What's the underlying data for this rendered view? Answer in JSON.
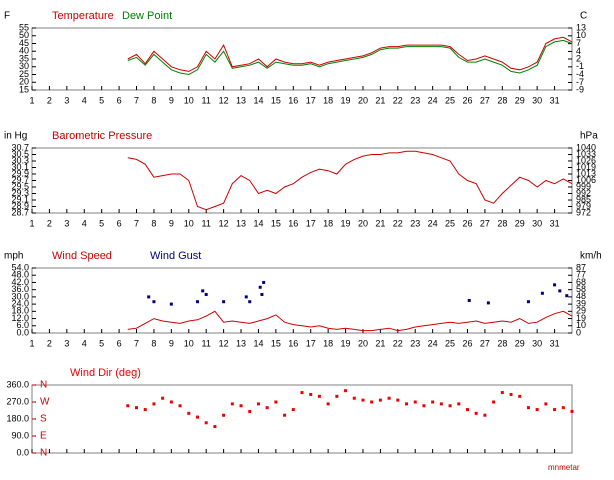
{
  "chart_data": [
    {
      "type": "line",
      "y_label": "F",
      "y2_label": "C",
      "xlim": [
        1,
        32
      ],
      "xticks": [
        1,
        2,
        3,
        4,
        5,
        6,
        7,
        8,
        9,
        10,
        11,
        12,
        13,
        14,
        15,
        16,
        17,
        18,
        19,
        20,
        21,
        22,
        23,
        24,
        25,
        26,
        27,
        28,
        29,
        30,
        31
      ],
      "ylim": [
        15,
        55
      ],
      "yticks": [
        55,
        50,
        45,
        40,
        35,
        30,
        25,
        20,
        15
      ],
      "y2lim": [
        -9.4,
        12.8
      ],
      "y2ticks": [
        {
          "value": 12.8,
          "label": "13"
        },
        {
          "value": 10,
          "label": "10"
        },
        {
          "value": 7.2,
          "label": "7"
        },
        {
          "value": 4.4,
          "label": "4"
        },
        {
          "value": 1.7,
          "label": "2"
        },
        {
          "value": -1.1,
          "label": "-1"
        },
        {
          "value": -3.9,
          "label": "-4"
        },
        {
          "value": -6.7,
          "label": "-7"
        },
        {
          "value": -9.4,
          "label": "-9"
        }
      ],
      "x": [
        6.5,
        7,
        7.5,
        8,
        8.5,
        9,
        9.5,
        10,
        10.5,
        11,
        11.5,
        12,
        12.5,
        13,
        13.5,
        14,
        14.5,
        15,
        15.5,
        16,
        16.5,
        17,
        17.5,
        18,
        18.5,
        19,
        19.5,
        20,
        20.5,
        21,
        21.5,
        22,
        22.5,
        23,
        23.5,
        24,
        24.5,
        25,
        25.5,
        26,
        26.5,
        27,
        27.5,
        28,
        28.5,
        29,
        29.5,
        30,
        30.5,
        31,
        31.5,
        32
      ],
      "series": [
        {
          "name": "Temperature",
          "color": "#cc0000",
          "values": [
            35,
            38,
            32,
            40,
            35,
            30,
            28,
            27,
            30,
            40,
            35,
            44,
            30,
            31,
            32,
            35,
            30,
            35,
            33,
            32,
            32,
            33,
            31,
            33,
            34,
            35,
            36,
            37,
            39,
            42,
            43,
            43,
            44,
            44,
            44,
            44,
            44,
            43,
            38,
            34,
            35,
            37,
            35,
            33,
            29,
            28,
            30,
            33,
            45,
            48,
            49,
            46
          ]
        },
        {
          "name": "Dew Point",
          "color": "#008000",
          "values": [
            34,
            36,
            31,
            38,
            33,
            28,
            26,
            25,
            28,
            38,
            33,
            40,
            29,
            30,
            31,
            33,
            29,
            33,
            32,
            31,
            31,
            32,
            30,
            32,
            33,
            34,
            35,
            36,
            38,
            41,
            42,
            42,
            43,
            43,
            43,
            43,
            43,
            42,
            36,
            33,
            33,
            35,
            33,
            31,
            27,
            26,
            28,
            31,
            43,
            46,
            47,
            45
          ]
        }
      ]
    },
    {
      "type": "line",
      "y_label": "in Hg",
      "y2_label": "hPa",
      "xlim": [
        1,
        32
      ],
      "xticks": [
        1,
        2,
        3,
        4,
        5,
        6,
        7,
        8,
        9,
        10,
        11,
        12,
        13,
        14,
        15,
        16,
        17,
        18,
        19,
        20,
        21,
        22,
        23,
        24,
        25,
        26,
        27,
        28,
        29,
        30,
        31
      ],
      "ylim": [
        28.7,
        30.7
      ],
      "yticks": [
        30.7,
        30.5,
        30.3,
        30.1,
        29.9,
        29.7,
        29.5,
        29.3,
        29.1,
        28.9,
        28.7
      ],
      "y2lim": [
        971.9,
        1039.6
      ],
      "y2ticks": [
        {
          "value": 1039.6,
          "label": "1040"
        },
        {
          "value": 1032.8,
          "label": "1033"
        },
        {
          "value": 1026.1,
          "label": "1026"
        },
        {
          "value": 1019.3,
          "label": "1019"
        },
        {
          "value": 1012.5,
          "label": "1013"
        },
        {
          "value": 1005.7,
          "label": "1006"
        },
        {
          "value": 999.0,
          "label": "999"
        },
        {
          "value": 992.2,
          "label": "992"
        },
        {
          "value": 985.4,
          "label": "985"
        },
        {
          "value": 978.7,
          "label": "979"
        },
        {
          "value": 971.9,
          "label": "972"
        }
      ],
      "x": [
        6.5,
        7,
        7.5,
        8,
        8.5,
        9,
        9.5,
        10,
        10.5,
        11,
        11.5,
        12,
        12.5,
        13,
        13.5,
        14,
        14.5,
        15,
        15.5,
        16,
        16.5,
        17,
        17.5,
        18,
        18.5,
        19,
        19.5,
        20,
        20.5,
        21,
        21.5,
        22,
        22.5,
        23,
        23.5,
        24,
        24.5,
        25,
        25.5,
        26,
        26.5,
        27,
        27.5,
        28,
        28.5,
        29,
        29.5,
        30,
        30.5,
        31,
        31.5,
        32
      ],
      "series": [
        {
          "name": "Barometric Pressure",
          "color": "#cc0000",
          "values": [
            30.4,
            30.35,
            30.2,
            29.8,
            29.85,
            29.9,
            29.9,
            29.7,
            28.9,
            28.8,
            28.9,
            29.0,
            29.6,
            29.85,
            29.7,
            29.3,
            29.4,
            29.3,
            29.5,
            29.6,
            29.8,
            29.95,
            30.05,
            30.0,
            29.9,
            30.2,
            30.35,
            30.45,
            30.5,
            30.5,
            30.55,
            30.55,
            30.6,
            30.6,
            30.55,
            30.5,
            30.4,
            30.3,
            29.9,
            29.7,
            29.6,
            29.1,
            29.0,
            29.3,
            29.55,
            29.8,
            29.7,
            29.5,
            29.7,
            29.6,
            29.75,
            29.6
          ]
        }
      ]
    },
    {
      "type": "line",
      "y_label": "mph",
      "y2_label": "km/h",
      "xlim": [
        1,
        32
      ],
      "xticks": [
        1,
        2,
        3,
        4,
        5,
        6,
        7,
        8,
        9,
        10,
        11,
        12,
        13,
        14,
        15,
        16,
        17,
        18,
        19,
        20,
        21,
        22,
        23,
        24,
        25,
        26,
        27,
        28,
        29,
        30,
        31
      ],
      "ylim": [
        0,
        54
      ],
      "yticks": [
        {
          "value": 54,
          "label": "54.0"
        },
        {
          "value": 48,
          "label": "48.0"
        },
        {
          "value": 42,
          "label": "42.0"
        },
        {
          "value": 36,
          "label": "36.0"
        },
        {
          "value": 30,
          "label": "30.0"
        },
        {
          "value": 24,
          "label": "24.0"
        },
        {
          "value": 18,
          "label": "18.0"
        },
        {
          "value": 12,
          "label": "12.0"
        },
        {
          "value": 6,
          "label": "6.0"
        },
        {
          "value": 0,
          "label": "0.0"
        }
      ],
      "y2lim": [
        0,
        86.9
      ],
      "y2ticks": [
        {
          "value": 86.9,
          "label": "87"
        },
        {
          "value": 77.2,
          "label": "77"
        },
        {
          "value": 67.6,
          "label": "68"
        },
        {
          "value": 57.9,
          "label": "58"
        },
        {
          "value": 48.3,
          "label": "48"
        },
        {
          "value": 38.6,
          "label": "39"
        },
        {
          "value": 29.0,
          "label": "29"
        },
        {
          "value": 19.3,
          "label": "19"
        },
        {
          "value": 9.7,
          "label": "10"
        },
        0
      ],
      "x": [
        6.5,
        7,
        7.5,
        8,
        8.5,
        9,
        9.5,
        10,
        10.5,
        11,
        11.5,
        12,
        12.5,
        13,
        13.5,
        14,
        14.5,
        15,
        15.5,
        16,
        16.5,
        17,
        17.5,
        18,
        18.5,
        19,
        19.5,
        20,
        20.5,
        21,
        21.5,
        22,
        22.5,
        23,
        23.5,
        24,
        24.5,
        25,
        25.5,
        26,
        26.5,
        27,
        27.5,
        28,
        28.5,
        29,
        29.5,
        30,
        30.5,
        31,
        31.5,
        32
      ],
      "series": [
        {
          "name": "Wind Speed",
          "color": "#cc0000",
          "values": [
            3,
            4,
            8,
            12,
            10,
            9,
            8,
            10,
            11,
            14,
            18,
            9,
            10,
            9,
            8,
            10,
            12,
            15,
            9,
            7,
            6,
            5,
            6,
            4,
            3,
            4,
            3,
            2,
            2,
            3,
            4,
            2,
            3,
            5,
            6,
            7,
            8,
            9,
            8,
            9,
            10,
            8,
            9,
            10,
            9,
            12,
            8,
            9,
            13,
            16,
            18,
            14
          ]
        },
        {
          "name": "Wind Gust",
          "color": "#000080",
          "type": "scatter",
          "x": [
            7.7,
            8,
            9,
            10.5,
            10.8,
            11,
            12,
            13.3,
            13.5,
            14.1,
            14.2,
            14.3,
            26.1,
            27.2,
            29.5,
            30.3,
            31,
            31.3,
            31.7
          ],
          "values": [
            30,
            26,
            24,
            26,
            35,
            32,
            26,
            30,
            26,
            38,
            32,
            42,
            27,
            25,
            26,
            33,
            40,
            35,
            31
          ]
        }
      ]
    },
    {
      "type": "scatter",
      "xlim": [
        1,
        32
      ],
      "xticks": [
        1,
        2,
        3,
        4,
        5,
        6,
        7,
        8,
        9,
        10,
        11,
        12,
        13,
        14,
        15,
        16,
        17,
        18,
        19,
        20,
        21,
        22,
        23,
        24,
        25,
        26,
        27,
        28,
        29,
        30,
        31
      ],
      "ylim": [
        0,
        360
      ],
      "yticks": [
        {
          "value": 360,
          "label": "360.0"
        },
        {
          "value": 270,
          "label": "270.0"
        },
        {
          "value": 180,
          "label": "180.0"
        },
        {
          "value": 90,
          "label": "90.0"
        },
        {
          "value": 0,
          "label": "0.0"
        }
      ],
      "compass": [
        {
          "value": 360,
          "label": "N"
        },
        {
          "value": 270,
          "label": "W"
        },
        {
          "value": 180,
          "label": "S"
        },
        {
          "value": 90,
          "label": "E"
        },
        {
          "value": 0,
          "label": "N"
        }
      ],
      "x": [
        6.5,
        7,
        7.5,
        8,
        8.5,
        9,
        9.5,
        10,
        10.5,
        11,
        11.5,
        12,
        12.5,
        13,
        13.5,
        14,
        14.5,
        15,
        15.5,
        16,
        16.5,
        17,
        17.5,
        18,
        18.5,
        19,
        19.5,
        20,
        20.5,
        21,
        21.5,
        22,
        22.5,
        23,
        23.5,
        24,
        24.5,
        25,
        25.5,
        26,
        26.5,
        27,
        27.5,
        28,
        28.5,
        29,
        29.5,
        30,
        30.5,
        31,
        31.5,
        32
      ],
      "series": [
        {
          "name": "Wind Dir (deg)",
          "color": "#ee0000",
          "values": [
            250,
            240,
            230,
            260,
            290,
            270,
            250,
            210,
            190,
            160,
            140,
            200,
            260,
            250,
            220,
            260,
            240,
            270,
            200,
            230,
            320,
            310,
            300,
            260,
            300,
            330,
            290,
            280,
            270,
            280,
            290,
            280,
            260,
            270,
            250,
            270,
            260,
            250,
            260,
            230,
            210,
            200,
            270,
            320,
            310,
            300,
            240,
            230,
            260,
            230,
            240,
            220
          ]
        }
      ]
    }
  ],
  "footer": "mnmetar"
}
